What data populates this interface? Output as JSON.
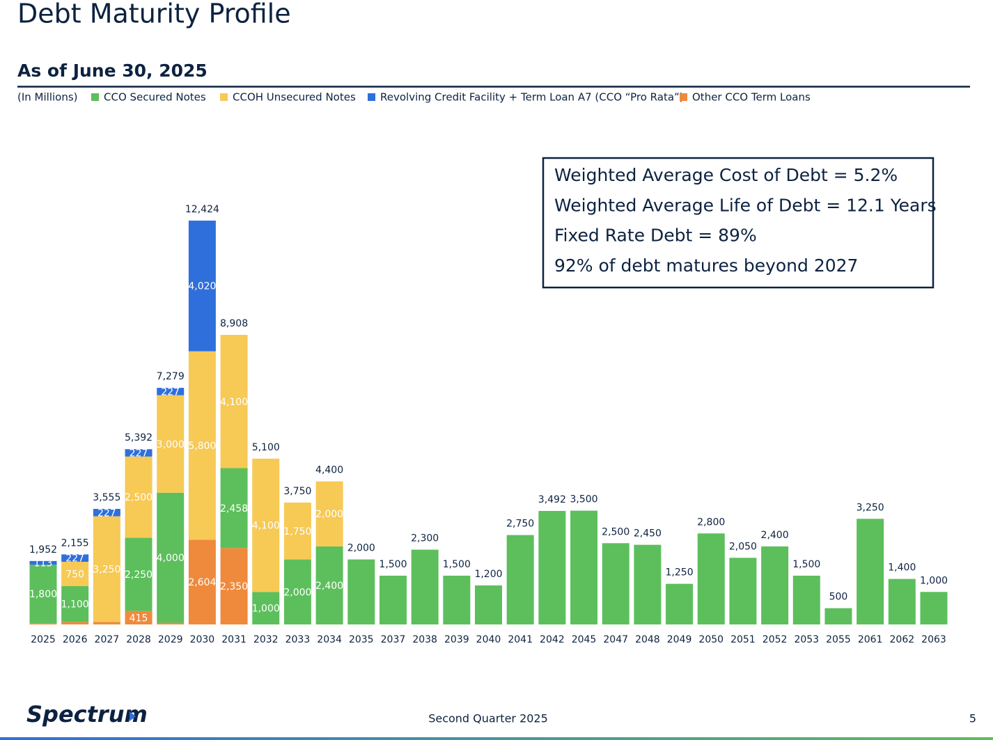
{
  "header": {
    "title": "Debt Maturity Profile",
    "subtitle": "As of June 30, 2025"
  },
  "chart_data": {
    "type": "stacked_bar",
    "units_note": "(In Millions)",
    "categories": [
      "2025",
      "2026",
      "2027",
      "2028",
      "2029",
      "2030",
      "2031",
      "2032",
      "2033",
      "2034",
      "2035",
      "2037",
      "2038",
      "2039",
      "2040",
      "2041",
      "2042",
      "2045",
      "2047",
      "2048",
      "2049",
      "2050",
      "2051",
      "2052",
      "2053",
      "2055",
      "2061",
      "2062",
      "2063"
    ],
    "ylim": [
      0,
      13000
    ],
    "series": [
      {
        "name": "Other CCO Term Loans",
        "color": "#ef8a3c",
        "values": [
          39,
          78,
          78,
          415,
          52,
          2604,
          2350,
          null,
          null,
          null,
          null,
          null,
          null,
          null,
          null,
          null,
          null,
          null,
          null,
          null,
          null,
          null,
          null,
          null,
          null,
          null,
          null,
          null,
          null
        ],
        "value_labels": [
          null,
          null,
          null,
          "415",
          null,
          "2,604",
          "2,350",
          null,
          null,
          null,
          null,
          null,
          null,
          null,
          null,
          null,
          null,
          null,
          null,
          null,
          null,
          null,
          null,
          null,
          null,
          null,
          null,
          null,
          null
        ]
      },
      {
        "name": "CCO Secured Notes",
        "color": "#5cbf5c",
        "values": [
          1800,
          1100,
          null,
          2250,
          4000,
          null,
          2458,
          1000,
          2000,
          2400,
          2000,
          1500,
          2300,
          1500,
          1200,
          2750,
          3492,
          3500,
          2500,
          2450,
          1250,
          2800,
          2050,
          2400,
          1500,
          500,
          3250,
          1400,
          1000
        ],
        "value_labels": [
          "1,800",
          "1,100",
          null,
          "2,250",
          "4,000",
          null,
          "2,458",
          "1,000",
          "2,000",
          "2,400",
          null,
          null,
          null,
          null,
          null,
          null,
          null,
          null,
          null,
          null,
          null,
          null,
          null,
          null,
          null,
          null,
          null,
          null,
          null
        ]
      },
      {
        "name": "CCOH Unsecured Notes",
        "color": "#f7c955",
        "values": [
          null,
          750,
          3250,
          2500,
          3000,
          5800,
          4100,
          4100,
          1750,
          2000,
          null,
          null,
          null,
          null,
          null,
          null,
          null,
          null,
          null,
          null,
          null,
          null,
          null,
          null,
          null,
          null,
          null,
          null,
          null
        ],
        "value_labels": [
          null,
          "750",
          "3,250",
          "2,500",
          "3,000",
          "5,800",
          "4,100",
          "4,100",
          "1,750",
          "2,000",
          null,
          null,
          null,
          null,
          null,
          null,
          null,
          null,
          null,
          null,
          null,
          null,
          null,
          null,
          null,
          null,
          null,
          null,
          null
        ]
      },
      {
        "name": "Revolving Credit Facility + Term Loan A7 (CCO “Pro Rata”)",
        "color": "#2f6fdc",
        "values": [
          113,
          227,
          227,
          227,
          227,
          4020,
          null,
          null,
          null,
          null,
          null,
          null,
          null,
          null,
          null,
          null,
          null,
          null,
          null,
          null,
          null,
          null,
          null,
          null,
          null,
          null,
          null,
          null,
          null
        ],
        "value_labels": [
          "113",
          "227",
          "227",
          "227",
          "227",
          "4,020",
          null,
          null,
          null,
          null,
          null,
          null,
          null,
          null,
          null,
          null,
          null,
          null,
          null,
          null,
          null,
          null,
          null,
          null,
          null,
          null,
          null,
          null,
          null
        ]
      }
    ],
    "totals": [
      1952,
      2155,
      3555,
      5392,
      7279,
      12424,
      8908,
      5100,
      3750,
      4400,
      2000,
      1500,
      2300,
      1500,
      1200,
      2750,
      3492,
      3500,
      2500,
      2450,
      1250,
      2800,
      2050,
      2400,
      1500,
      500,
      3250,
      1400,
      1000
    ],
    "total_labels": [
      "1,952",
      "2,155",
      "3,555",
      "5,392",
      "7,279",
      "12,424",
      "8,908",
      "5,100",
      "3,750",
      "4,400",
      "2,000",
      "1,500",
      "2,300",
      "1,500",
      "1,200",
      "2,750",
      "3,492",
      "3,500",
      "2,500",
      "2,450",
      "1,250",
      "2,800",
      "2,050",
      "2,400",
      "1,500",
      "500",
      "3,250",
      "1,400",
      "1,000"
    ],
    "annotations": [
      "Weighted Average Cost of Debt = 5.2%",
      "Weighted Average Life of Debt = 12.1 Years",
      "Fixed Rate Debt = 89%",
      "92% of debt matures beyond 2027"
    ]
  },
  "footer": {
    "logo": "Spectrum",
    "center": "Second Quarter 2025",
    "page": "5"
  }
}
